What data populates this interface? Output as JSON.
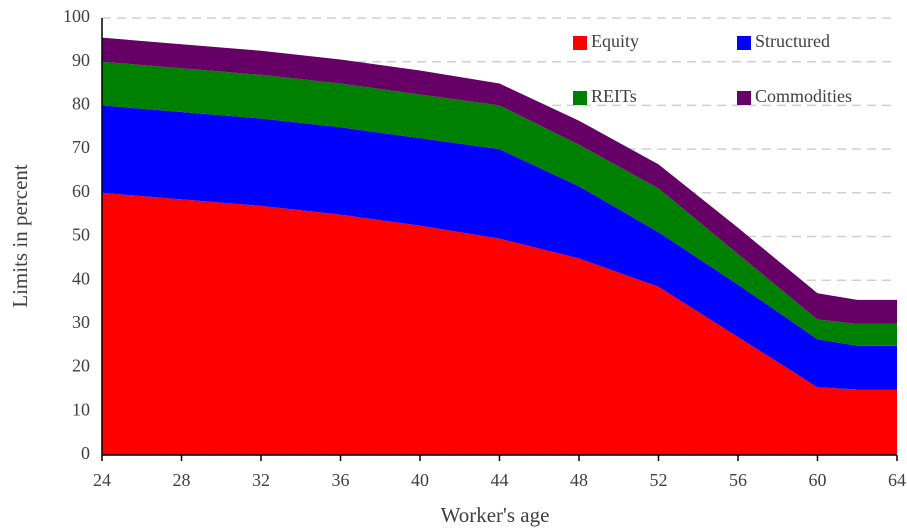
{
  "chart_data": {
    "type": "stacked_area",
    "xlabel": "Worker's age",
    "ylabel": "Limits in percent",
    "x": [
      24,
      28,
      32,
      36,
      40,
      44,
      48,
      52,
      56,
      60,
      62,
      64
    ],
    "series": [
      {
        "name": "Equity",
        "color": "#ff0000",
        "values": [
          60,
          58.5,
          57,
          55,
          52.5,
          49.5,
          45,
          38.5,
          27,
          15.5,
          15,
          15
        ]
      },
      {
        "name": "Structured",
        "color": "#0000ff",
        "values": [
          20,
          20,
          20,
          20,
          20,
          20.5,
          16.5,
          12.5,
          12,
          11,
          10,
          10
        ]
      },
      {
        "name": "REITs",
        "color": "#008000",
        "values": [
          10,
          10,
          10,
          10,
          10,
          10,
          9.5,
          10,
          7,
          4.5,
          5,
          5
        ]
      },
      {
        "name": "Commodities",
        "color": "#660066",
        "values": [
          5.5,
          5.5,
          5.5,
          5.5,
          5.5,
          5,
          5.5,
          5.5,
          6,
          6,
          5.5,
          5.5
        ]
      }
    ],
    "xlim": [
      24,
      64
    ],
    "xticks": [
      24,
      28,
      32,
      36,
      40,
      44,
      48,
      52,
      56,
      60,
      64
    ],
    "ylim": [
      0,
      100
    ],
    "yticks": [
      0,
      10,
      20,
      30,
      40,
      50,
      60,
      70,
      80,
      90,
      100
    ],
    "grid": true,
    "legend": "upper right"
  }
}
